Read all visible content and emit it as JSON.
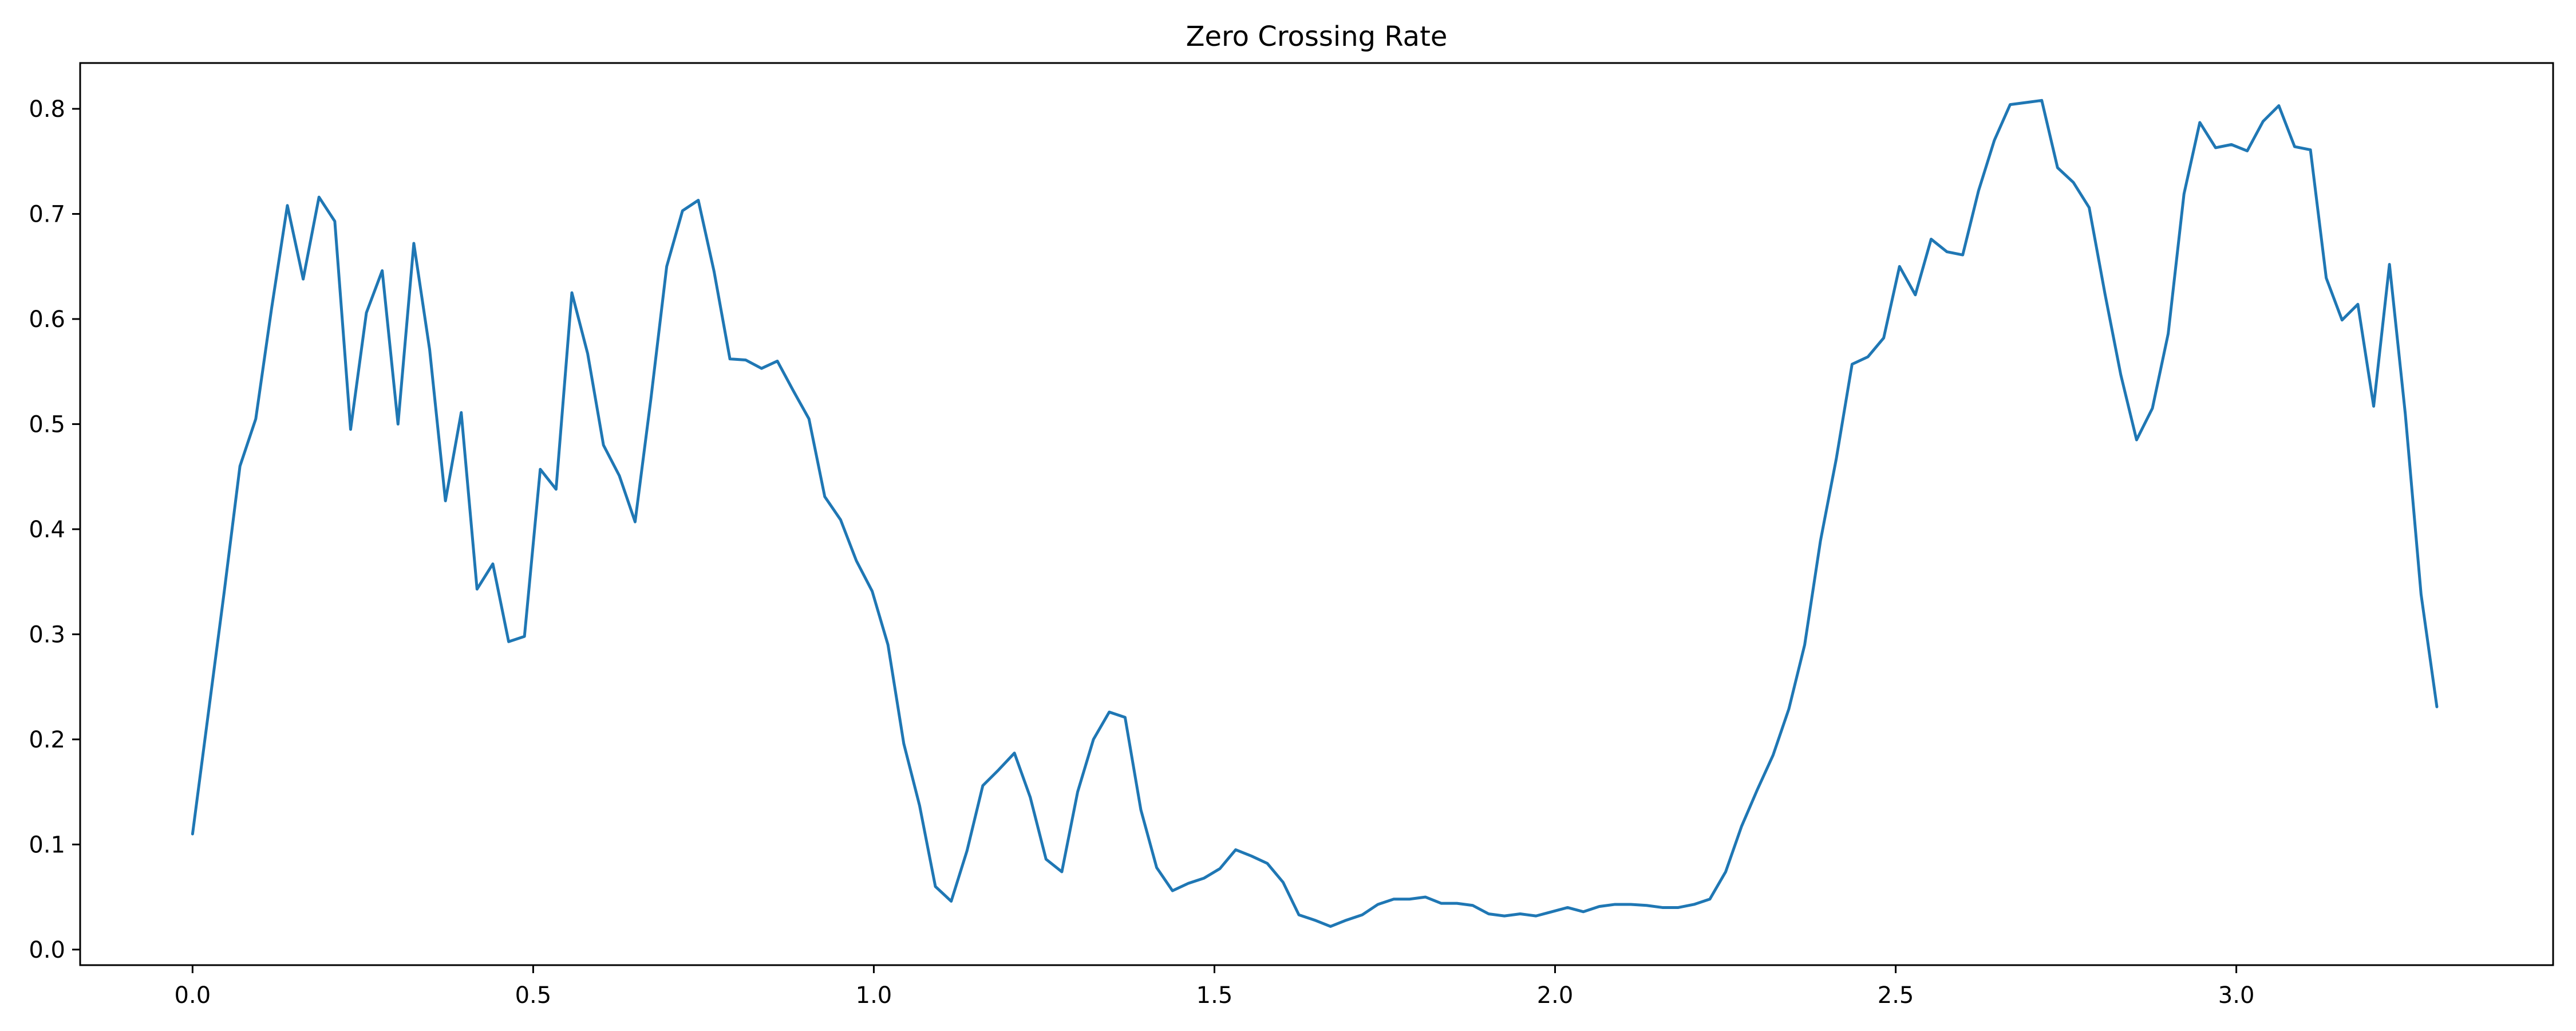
{
  "chart_data": {
    "type": "line",
    "title": "Zero Crossing Rate",
    "xlabel": "",
    "ylabel": "",
    "xlim": [
      -0.165,
      3.465
    ],
    "ylim": [
      -0.0148,
      0.8436
    ],
    "grid": false,
    "legend": "none",
    "x_ticks": [
      0.0,
      0.5,
      1.0,
      1.5,
      2.0,
      2.5,
      3.0
    ],
    "x_tick_labels": [
      "0.0",
      "0.5",
      "1.0",
      "1.5",
      "2.0",
      "2.5",
      "3.0"
    ],
    "y_ticks": [
      0.0,
      0.1,
      0.2,
      0.3,
      0.4,
      0.5,
      0.6,
      0.7,
      0.8
    ],
    "y_tick_labels": [
      "0.0",
      "0.1",
      "0.2",
      "0.3",
      "0.4",
      "0.5",
      "0.6",
      "0.7",
      "0.8"
    ],
    "series": [
      {
        "name": "Zero Crossing Rate",
        "color": "#1f77b4",
        "x_start": 0.0,
        "x_step": 0.0232,
        "values": [
          0.11,
          0.225,
          0.34,
          0.46,
          0.505,
          0.61,
          0.708,
          0.638,
          0.716,
          0.693,
          0.495,
          0.606,
          0.646,
          0.5,
          0.672,
          0.571,
          0.427,
          0.511,
          0.343,
          0.367,
          0.293,
          0.298,
          0.457,
          0.438,
          0.625,
          0.567,
          0.48,
          0.451,
          0.407,
          0.524,
          0.65,
          0.703,
          0.713,
          0.645,
          0.562,
          0.561,
          0.553,
          0.56,
          0.532,
          0.505,
          0.431,
          0.409,
          0.37,
          0.341,
          0.29,
          0.196,
          0.137,
          0.06,
          0.046,
          0.094,
          0.156,
          0.171,
          0.187,
          0.145,
          0.086,
          0.074,
          0.15,
          0.2,
          0.226,
          0.221,
          0.133,
          0.078,
          0.056,
          0.063,
          0.068,
          0.077,
          0.095,
          0.089,
          0.082,
          0.064,
          0.033,
          0.028,
          0.022,
          0.028,
          0.033,
          0.043,
          0.048,
          0.048,
          0.05,
          0.044,
          0.044,
          0.042,
          0.034,
          0.032,
          0.034,
          0.032,
          0.036,
          0.04,
          0.036,
          0.041,
          0.043,
          0.043,
          0.042,
          0.04,
          0.04,
          0.043,
          0.048,
          0.074,
          0.117,
          0.152,
          0.185,
          0.229,
          0.29,
          0.389,
          0.467,
          0.557,
          0.564,
          0.582,
          0.65,
          0.623,
          0.676,
          0.664,
          0.661,
          0.722,
          0.77,
          0.804,
          0.806,
          0.808,
          0.744,
          0.73,
          0.706,
          0.624,
          0.547,
          0.485,
          0.515,
          0.586,
          0.719,
          0.787,
          0.763,
          0.766,
          0.76,
          0.788,
          0.803,
          0.764,
          0.761,
          0.639,
          0.599,
          0.614,
          0.517,
          0.652,
          0.51,
          0.338,
          0.231
        ]
      }
    ]
  }
}
